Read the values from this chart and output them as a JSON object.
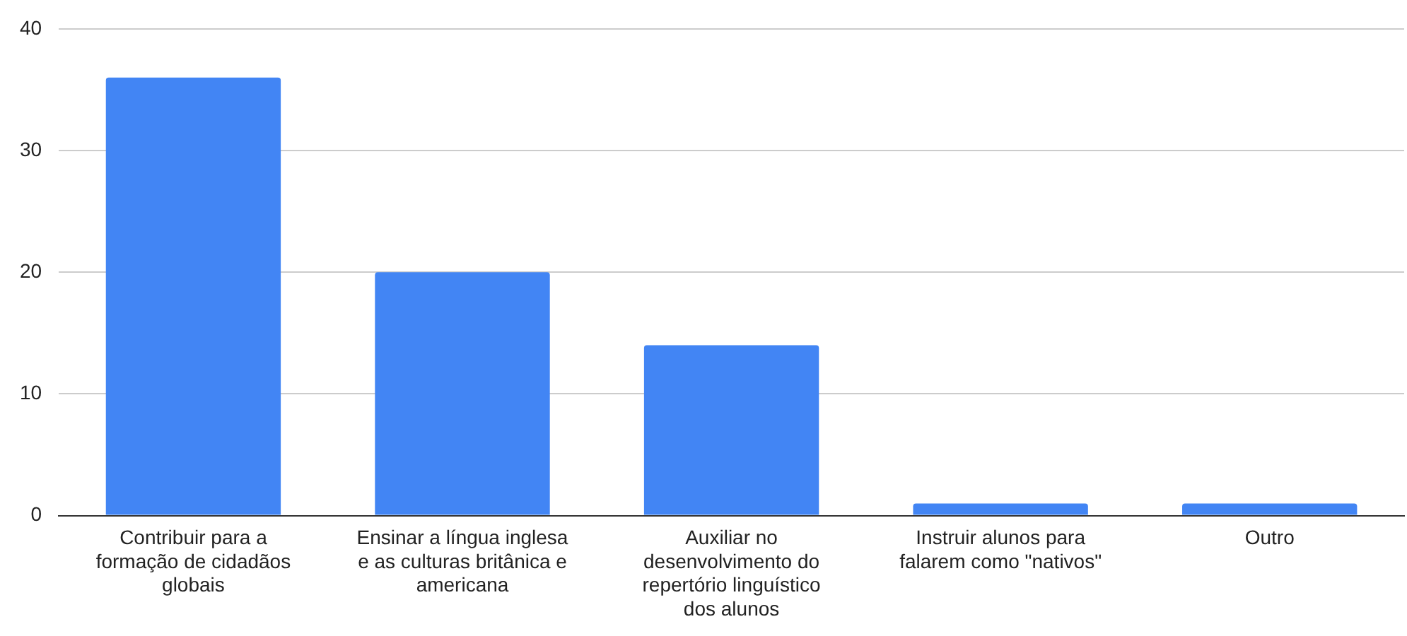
{
  "chart_data": {
    "type": "bar",
    "categories": [
      "Contribuir para a formação de cidadãos globais",
      "Ensinar a língua inglesa e as culturas britânica e americana",
      "Auxiliar no desenvolvimento do repertório linguístico dos alunos",
      "Instruir alunos para falarem como \"nativos\"",
      "Outro"
    ],
    "values": [
      36,
      20,
      14,
      1,
      1
    ],
    "color": "#4285f4",
    "ylim": [
      0,
      40
    ],
    "yticks": [
      0,
      10,
      20,
      30,
      40
    ],
    "grid": "y",
    "legend": false
  }
}
